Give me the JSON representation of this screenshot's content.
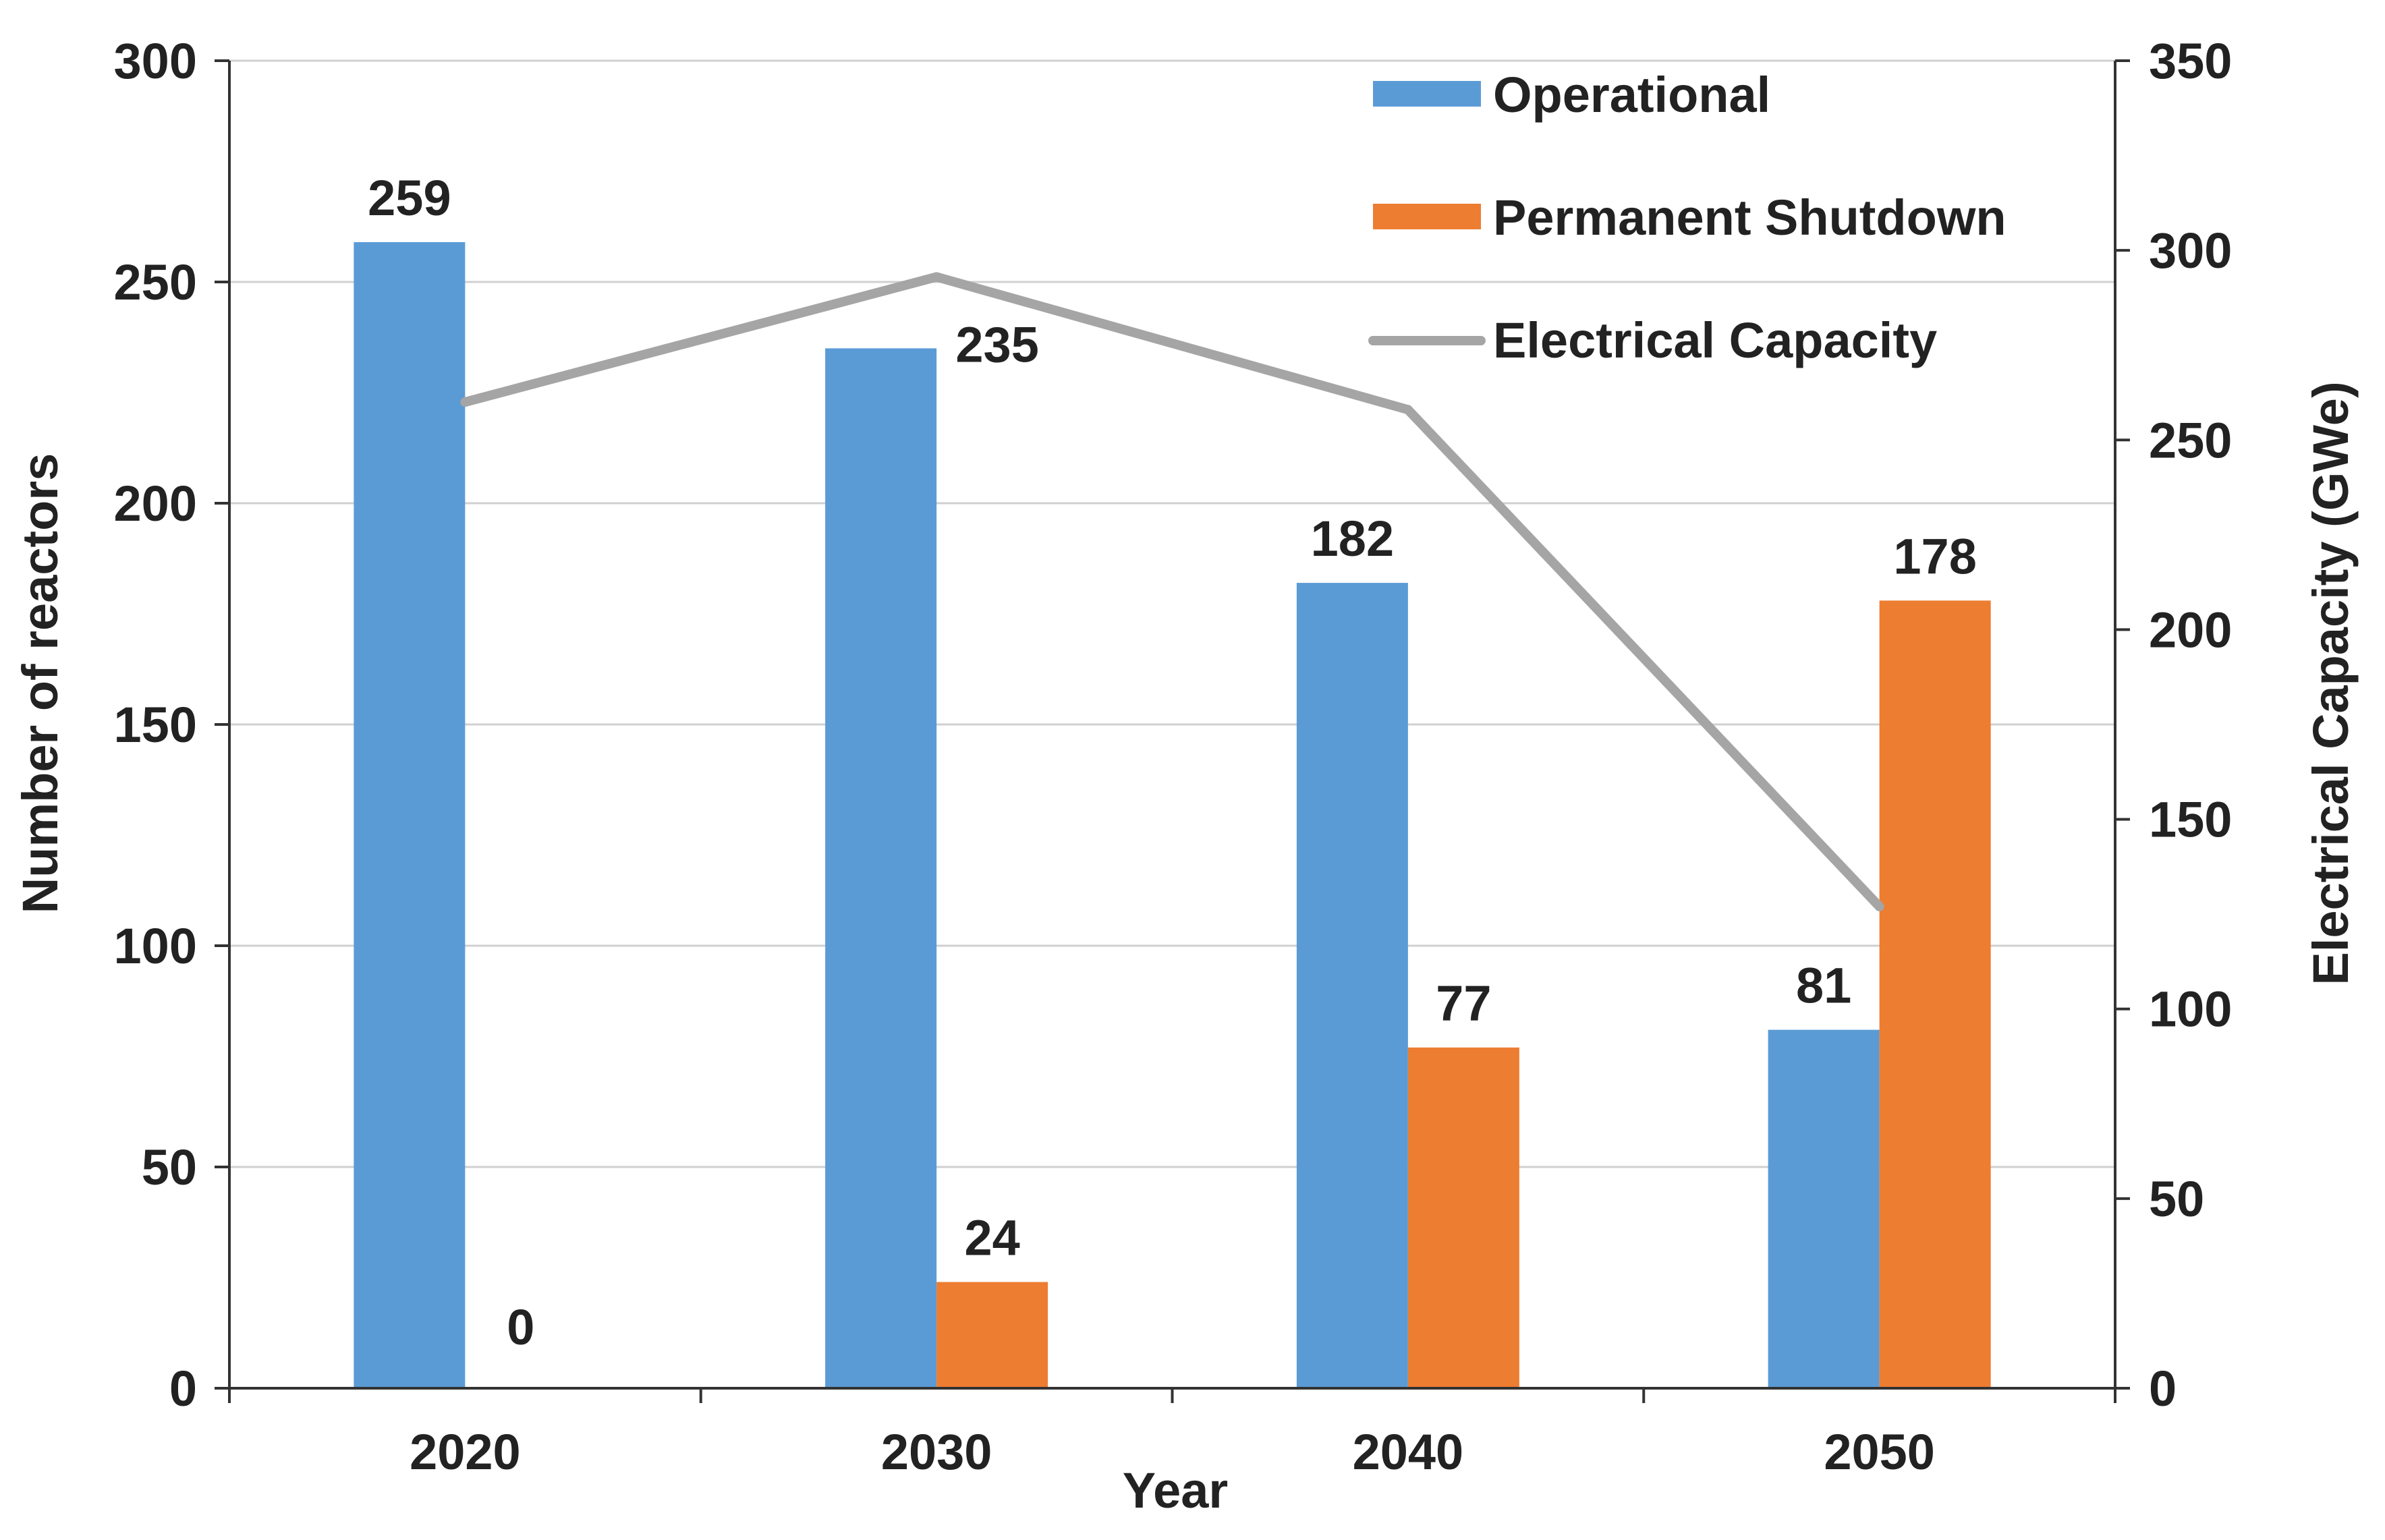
{
  "chart_data": {
    "type": "bar",
    "categories": [
      "2020",
      "2030",
      "2040",
      "2050"
    ],
    "series": [
      {
        "name": "Operational",
        "axis": "left",
        "kind": "bar",
        "color": "#5B9BD5",
        "values": [
          259,
          235,
          182,
          81
        ]
      },
      {
        "name": "Permanent Shutdown",
        "axis": "left",
        "kind": "bar",
        "color": "#ED7D31",
        "values": [
          0,
          24,
          77,
          178
        ]
      },
      {
        "name": "Electrical Capacity",
        "axis": "right",
        "kind": "line",
        "color": "#A5A5A5",
        "values": [
          260,
          293,
          258,
          127
        ]
      }
    ],
    "xlabel": "Year",
    "ylabel": "Number of reactors",
    "y2label": "Electrical Capacity (GWe)",
    "ylim": [
      0,
      300
    ],
    "yticks": [
      "0",
      "50",
      "100",
      "150",
      "200",
      "250",
      "300"
    ],
    "y2lim": [
      0,
      350
    ],
    "y2ticks": [
      "0",
      "50",
      "100",
      "150",
      "200",
      "250",
      "300",
      "350"
    ],
    "bar_labels": {
      "Operational": [
        "259",
        "235",
        "182",
        "81"
      ],
      "Permanent Shutdown": [
        "0",
        "24",
        "77",
        "178"
      ]
    },
    "legend": [
      "Operational",
      "Permanent Shutdown",
      "Electrical Capacity"
    ],
    "legend_position": "top-right",
    "grid": true
  }
}
